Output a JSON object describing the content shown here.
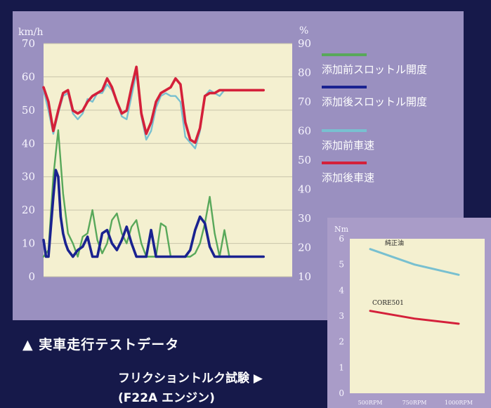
{
  "captions": {
    "main_chart": "▲ 実車走行テストデータ",
    "friction_title": "フリクショントルク試験 ▶",
    "friction_engine": "(F22A エンジン)"
  },
  "colors": {
    "background": "#16194a",
    "panel_main": "#9a90c0",
    "panel_small": "#a99cc8",
    "plot_area": "#f4f0d0",
    "green": "#58a85a",
    "lightblue": "#78c0d0",
    "darkblue": "#1a2290",
    "red": "#d4203a"
  },
  "chart_data": [
    {
      "type": "line",
      "y_left": {
        "unit": "km/h",
        "range": [
          0,
          70
        ],
        "ticks": [
          "0",
          "10",
          "20",
          "30",
          "40",
          "50",
          "60",
          "70"
        ]
      },
      "y_right": {
        "unit": "%",
        "range": [
          10,
          90
        ],
        "ticks": [
          "10",
          "20",
          "30",
          "40",
          "50",
          "60",
          "70",
          "80",
          "90"
        ]
      },
      "x_range": [
        0,
        100
      ],
      "grid": "horizontal",
      "legend_placement": "right",
      "series": [
        {
          "name": "添加前スロットル開度",
          "axis": "left",
          "color": "#58a85a",
          "x": [
            0,
            2,
            4,
            6,
            8,
            10,
            12,
            14,
            16,
            18,
            20,
            22,
            24,
            26,
            28,
            30,
            32,
            34,
            36,
            38,
            40,
            42,
            44,
            46,
            48,
            50,
            52,
            54,
            56,
            58,
            60,
            62,
            64,
            66,
            68,
            70,
            72,
            74,
            76,
            78,
            80,
            82,
            84,
            86,
            88,
            90
          ],
          "y": [
            6,
            8,
            30,
            44,
            25,
            13,
            10,
            6,
            12,
            13,
            20,
            11,
            7,
            10,
            17,
            19,
            13,
            10,
            15,
            17,
            10,
            6,
            6,
            6,
            16,
            15,
            6,
            6,
            6,
            6,
            6,
            7,
            10,
            16,
            24,
            13,
            6,
            14,
            6,
            6,
            6,
            6,
            6,
            6,
            6,
            6
          ]
        },
        {
          "name": "添加後スロットル開度",
          "axis": "left",
          "color": "#1a2290",
          "x": [
            0,
            1,
            2,
            4,
            5,
            6,
            7,
            8,
            9,
            10,
            12,
            14,
            16,
            18,
            20,
            22,
            24,
            26,
            28,
            30,
            32,
            34,
            36,
            38,
            40,
            42,
            44,
            46,
            48,
            50,
            52,
            54,
            56,
            58,
            60,
            62,
            64,
            66,
            68,
            70,
            72,
            74,
            76,
            78,
            80,
            82,
            84,
            86,
            88,
            90
          ],
          "y": [
            11,
            6,
            6,
            24,
            32,
            30,
            18,
            13,
            10,
            8,
            6,
            8,
            9,
            12,
            6,
            6,
            13,
            14,
            10,
            8,
            11,
            15,
            10,
            6,
            6,
            6,
            14,
            6,
            6,
            6,
            6,
            6,
            6,
            6,
            8,
            14,
            18,
            16,
            9,
            6,
            6,
            6,
            6,
            6,
            6,
            6,
            6,
            6,
            6,
            6
          ]
        },
        {
          "name": "添加前車速",
          "axis": "right",
          "color": "#78c0d0",
          "x": [
            0,
            2,
            4,
            6,
            8,
            10,
            12,
            14,
            16,
            18,
            20,
            22,
            24,
            26,
            28,
            30,
            32,
            34,
            36,
            38,
            40,
            42,
            44,
            46,
            48,
            50,
            52,
            54,
            56,
            58,
            60,
            62,
            64,
            66,
            68,
            70,
            72,
            74,
            76,
            78,
            80,
            82,
            84,
            86,
            88,
            90
          ],
          "y": [
            74,
            67,
            59,
            66,
            72,
            73,
            66,
            64,
            66,
            71,
            70,
            73,
            73,
            76,
            74,
            70,
            65,
            64,
            72,
            80,
            65,
            57,
            60,
            68,
            72,
            73,
            72,
            72,
            70,
            58,
            56,
            54,
            60,
            72,
            74,
            73,
            72,
            74,
            74,
            74,
            74,
            74,
            74,
            74,
            74,
            74
          ]
        },
        {
          "name": "添加後車速",
          "axis": "right",
          "color": "#d4203a",
          "x": [
            0,
            2,
            4,
            6,
            8,
            10,
            12,
            14,
            16,
            18,
            20,
            22,
            24,
            26,
            28,
            30,
            32,
            34,
            36,
            38,
            40,
            42,
            44,
            46,
            48,
            50,
            52,
            54,
            56,
            58,
            60,
            62,
            64,
            66,
            68,
            70,
            72,
            74,
            76,
            78,
            80,
            82,
            84,
            86,
            88,
            90
          ],
          "y": [
            75,
            70,
            60,
            67,
            73,
            74,
            67,
            66,
            67,
            70,
            72,
            73,
            74,
            78,
            75,
            70,
            66,
            67,
            75,
            82,
            66,
            59,
            63,
            70,
            73,
            74,
            75,
            78,
            76,
            63,
            57,
            56,
            61,
            72,
            73,
            73,
            74,
            74,
            74,
            74,
            74,
            74,
            74,
            74,
            74,
            74
          ]
        }
      ]
    },
    {
      "type": "line",
      "y_left": {
        "unit": "Nm",
        "range": [
          0,
          6
        ],
        "ticks": [
          "0",
          "1",
          "2",
          "3",
          "4",
          "5",
          "6"
        ]
      },
      "categories": [
        "500RPM",
        "750RPM",
        "1000RPM"
      ],
      "grid": "none",
      "series": [
        {
          "name": "純正油",
          "color": "#78c0d0",
          "values": [
            5.6,
            5.0,
            4.6
          ]
        },
        {
          "name": "CORE501",
          "color": "#d4203a",
          "values": [
            3.2,
            2.9,
            2.7
          ]
        }
      ]
    }
  ]
}
